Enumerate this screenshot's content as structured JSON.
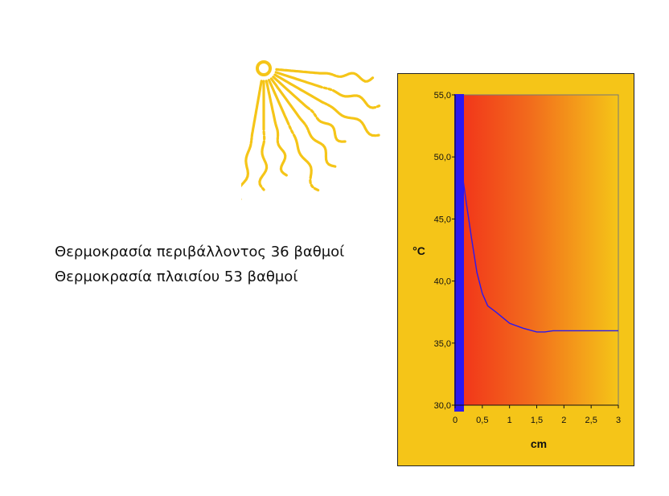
{
  "caption": {
    "line1": "Θερμοκρασία περιβάλλοντος 36 βαθμοί",
    "line2": "Θερμοκρασία πλαισίου 53 βαθμοί"
  },
  "colors": {
    "panel": "#f5c518",
    "gradient_start": "#f2301a",
    "gradient_end": "#f5c518",
    "frame_bar": "#2b18f0",
    "curve": "#2b18f0",
    "sun": "#f5c518"
  },
  "chart_data": {
    "type": "line",
    "xlabel": "cm",
    "ylabel": "°C",
    "xlim": [
      0,
      3
    ],
    "ylim": [
      30,
      55
    ],
    "x_ticks": [
      "0",
      "0,5",
      "1",
      "1,5",
      "2",
      "2,5",
      "3"
    ],
    "y_ticks": [
      "30,0",
      "35,0",
      "40,0",
      "45,0",
      "50,0",
      "55,0"
    ],
    "series": [
      {
        "x": [
          0.12,
          0.2,
          0.3,
          0.4,
          0.5,
          0.6,
          0.75,
          1.0,
          1.25,
          1.5,
          1.65,
          1.8,
          2.0,
          2.5,
          3.0
        ],
        "y": [
          49.0,
          46.5,
          43.5,
          40.7,
          39.0,
          38.0,
          37.5,
          36.6,
          36.2,
          35.9,
          35.9,
          36.0,
          36.0,
          36.0,
          36.0
        ]
      }
    ]
  }
}
